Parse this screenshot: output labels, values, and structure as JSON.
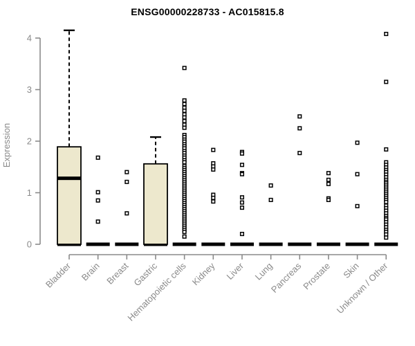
{
  "title": "ENSG00000228733 - AC015815.8",
  "colors": {
    "box_fill": "#EDE8CD",
    "box_stroke": "#000000",
    "median_color": "#000000",
    "zero_bar_color": "#000000",
    "axis_gray": "#8A8A8A",
    "tick_label_gray": "#8A8A8A",
    "title_color": "#000000",
    "point_stroke": "#000000",
    "point_fill": "#FFFFFF"
  },
  "chart_data": {
    "type": "boxplot",
    "title": "ENSG00000228733 - AC015815.8",
    "ylabel": "Expression",
    "xlabel": "",
    "ylim": [
      0,
      4.2
    ],
    "yticks": [
      0,
      1,
      2,
      3,
      4
    ],
    "grid": false,
    "legend": null,
    "categories": [
      "Bladder",
      "Brain",
      "Breast",
      "Gastric",
      "Hematopoietic cells",
      "Kidney",
      "Liver",
      "Lung",
      "Pancreas",
      "Prostate",
      "Skin",
      "Unknown / Other"
    ],
    "series": [
      {
        "name": "Bladder",
        "box": {
          "q1": 0,
          "median": 1.28,
          "q3": 1.89,
          "whisker_low": 0,
          "whisker_high": 4.15
        },
        "zero_bar": true,
        "points": []
      },
      {
        "name": "Brain",
        "box": null,
        "zero_bar": true,
        "points": [
          1.68,
          1.01,
          0.85,
          0.44
        ]
      },
      {
        "name": "Breast",
        "box": null,
        "zero_bar": true,
        "points": [
          1.4,
          1.21,
          0.6
        ]
      },
      {
        "name": "Gastric",
        "box": {
          "q1": 0,
          "median": 0,
          "q3": 1.56,
          "whisker_low": 0,
          "whisker_high": 2.08
        },
        "zero_bar": true,
        "points": []
      },
      {
        "name": "Hematopoietic cells",
        "box": null,
        "zero_bar": true,
        "points": [
          3.42,
          2.79,
          2.72,
          2.65,
          2.59,
          2.52,
          2.46,
          2.39,
          2.32,
          2.26,
          2.12,
          2.08,
          2.03,
          1.99,
          1.94,
          1.9,
          1.86,
          1.81,
          1.77,
          1.72,
          1.68,
          1.63,
          1.59,
          1.52,
          1.48,
          1.44,
          1.4,
          1.36,
          1.32,
          1.28,
          1.24,
          1.2,
          1.16,
          1.12,
          1.08,
          1.04,
          1.0,
          0.96,
          0.92,
          0.88,
          0.84,
          0.8,
          0.76,
          0.72,
          0.68,
          0.64,
          0.6,
          0.56,
          0.52,
          0.48,
          0.44,
          0.4,
          0.36,
          0.32,
          0.28,
          0.24,
          0.15
        ]
      },
      {
        "name": "Kidney",
        "box": null,
        "zero_bar": true,
        "points": [
          1.83,
          1.57,
          1.51,
          1.45,
          0.96,
          0.9,
          0.83
        ]
      },
      {
        "name": "Liver",
        "box": null,
        "zero_bar": true,
        "points": [
          1.79,
          1.76,
          1.54,
          1.38,
          1.36,
          0.91,
          0.81,
          0.71,
          0.2
        ]
      },
      {
        "name": "Lung",
        "box": null,
        "zero_bar": true,
        "points": [
          1.14,
          0.86
        ]
      },
      {
        "name": "Pancreas",
        "box": null,
        "zero_bar": true,
        "points": [
          2.48,
          2.25,
          1.77
        ]
      },
      {
        "name": "Prostate",
        "box": null,
        "zero_bar": true,
        "points": [
          1.38,
          1.25,
          1.17,
          0.89,
          0.86
        ]
      },
      {
        "name": "Skin",
        "box": null,
        "zero_bar": true,
        "points": [
          1.97,
          1.36,
          0.74
        ]
      },
      {
        "name": "Unknown / Other",
        "box": null,
        "zero_bar": true,
        "points": [
          4.08,
          3.15,
          1.84,
          1.59,
          1.54,
          1.49,
          1.44,
          1.4,
          1.35,
          1.3,
          1.25,
          1.21,
          1.18,
          1.14,
          1.1,
          1.06,
          1.02,
          0.98,
          0.94,
          0.9,
          0.86,
          0.82,
          0.75,
          0.7,
          0.65,
          0.6,
          0.55,
          0.51,
          0.48,
          0.43,
          0.38,
          0.33,
          0.28,
          0.24,
          0.19,
          0.13
        ]
      }
    ]
  }
}
